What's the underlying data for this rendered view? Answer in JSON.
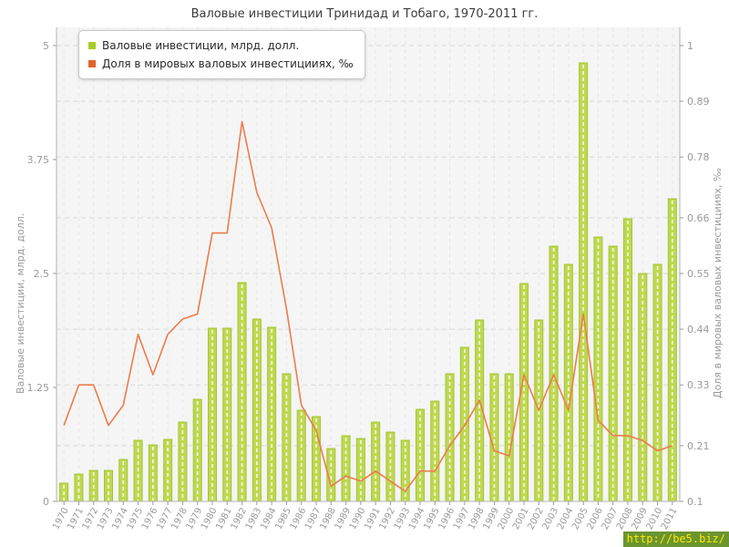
{
  "title": "Валовые инвестиции Тринидад и Тобаго, 1970-2011 гг.",
  "watermark": {
    "text": "http://be5.biz/",
    "bg": "#6b9530",
    "fg": "#ffe800"
  },
  "chart_data": {
    "type": "combo",
    "title": "Валовые инвестиции Тринидад и Тобаго, 1970-2011 гг.",
    "categories": [
      1970,
      1971,
      1972,
      1973,
      1974,
      1975,
      1976,
      1977,
      1978,
      1979,
      1980,
      1981,
      1982,
      1983,
      1984,
      1985,
      1986,
      1987,
      1988,
      1989,
      1990,
      1991,
      1992,
      1993,
      1994,
      1995,
      1996,
      1997,
      1998,
      1999,
      2000,
      2001,
      2002,
      2003,
      2004,
      2005,
      2006,
      2007,
      2008,
      2009,
      2010,
      2011
    ],
    "series": [
      {
        "name": "Валовые инвестиции, млрд. долл.",
        "type": "bar",
        "axis": "left",
        "color": "#bfd852",
        "border_color": "#a3c52f",
        "legend_color": "#a8cc27",
        "values": [
          0.2,
          0.3,
          0.34,
          0.34,
          0.46,
          0.67,
          0.62,
          0.68,
          0.87,
          1.12,
          1.9,
          1.9,
          2.4,
          2.0,
          1.91,
          1.4,
          1.0,
          0.93,
          0.58,
          0.72,
          0.69,
          0.87,
          0.76,
          0.67,
          1.01,
          1.1,
          1.4,
          1.69,
          1.99,
          1.4,
          1.4,
          2.39,
          1.99,
          2.8,
          2.6,
          4.81,
          2.9,
          2.8,
          3.1,
          2.5,
          2.6,
          3.32
        ]
      },
      {
        "name": "Доля в мировых валовых инвестицииях, ‰",
        "type": "line",
        "axis": "right",
        "color": "#ec7c4d",
        "legend_color": "#e2622b",
        "values": [
          0.25,
          0.33,
          0.33,
          0.25,
          0.29,
          0.43,
          0.35,
          0.43,
          0.46,
          0.47,
          0.63,
          0.63,
          0.85,
          0.71,
          0.64,
          0.48,
          0.29,
          0.24,
          0.13,
          0.15,
          0.14,
          0.16,
          0.14,
          0.12,
          0.16,
          0.16,
          0.21,
          0.25,
          0.3,
          0.2,
          0.19,
          0.35,
          0.28,
          0.35,
          0.28,
          0.47,
          0.26,
          0.23,
          0.23,
          0.22,
          0.2,
          0.21
        ]
      }
    ],
    "left_axis": {
      "label": "Валовые инвестиции, млрд. долл.",
      "ticks": [
        "5",
        "3.75",
        "2.5",
        "1.25",
        "0"
      ],
      "range": [
        0,
        5
      ]
    },
    "right_axis": {
      "label": "Доля в мировых валовых инвестицииях, ‰",
      "ticks": [
        "1",
        "0.89",
        "0.78",
        "0.66",
        "0.55",
        "0.44",
        "0.33",
        "0.21",
        "0.1"
      ],
      "range": [
        0.1,
        1
      ]
    },
    "grid": true,
    "legend_position": "top-left"
  }
}
